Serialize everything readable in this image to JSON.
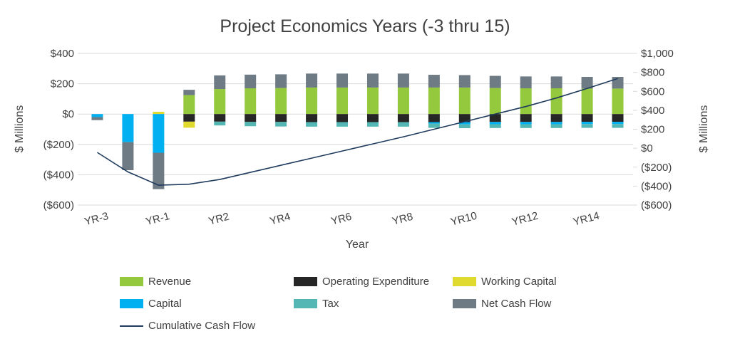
{
  "title": "Project Economics Years (-3 thru 15)",
  "colors": {
    "revenue": "#94c83d",
    "opex": "#262626",
    "working_capital": "#e0d92e",
    "capital": "#00b0f0",
    "tax": "#54b7b3",
    "net_cash_flow": "#6f7b84",
    "line": "#1f3b5e",
    "grid": "#d9d9d9",
    "text": "#404040"
  },
  "chart_data": {
    "type": "bar",
    "subtype": "stacked-bar-with-line-combo",
    "title": "Project Economics Years (-3 thru 15)",
    "categories": [
      "YR-3",
      "YR-2",
      "YR-1",
      "YR1",
      "YR2",
      "YR3",
      "YR4",
      "YR5",
      "YR6",
      "YR7",
      "YR8",
      "YR9",
      "YR10",
      "YR11",
      "YR12",
      "YR13",
      "YR14",
      "YR15"
    ],
    "series": [
      {
        "name": "Revenue",
        "color_key": "revenue",
        "values": [
          0,
          0,
          0,
          125,
          165,
          170,
          172,
          175,
          175,
          175,
          175,
          175,
          175,
          172,
          170,
          170,
          168,
          168
        ]
      },
      {
        "name": "Operating Expenditure",
        "color_key": "opex",
        "values": [
          0,
          0,
          0,
          -50,
          -50,
          -52,
          -52,
          -53,
          -53,
          -53,
          -53,
          -53,
          -53,
          -52,
          -52,
          -52,
          -51,
          -51
        ]
      },
      {
        "name": "Working Capital",
        "color_key": "working_capital",
        "values": [
          0,
          0,
          15,
          -40,
          0,
          0,
          0,
          0,
          0,
          0,
          0,
          0,
          0,
          0,
          0,
          0,
          0,
          0
        ]
      },
      {
        "name": "Capital",
        "color_key": "capital",
        "values": [
          -20,
          -185,
          -255,
          0,
          0,
          0,
          0,
          0,
          0,
          0,
          0,
          -10,
          -15,
          -15,
          -15,
          -15,
          -15,
          -15
        ]
      },
      {
        "name": "Tax",
        "color_key": "tax",
        "values": [
          0,
          0,
          0,
          0,
          -25,
          -28,
          -30,
          -30,
          -30,
          -30,
          -30,
          -28,
          -25,
          -25,
          -25,
          -25,
          -25,
          -25
        ]
      },
      {
        "name": "Net Cash Flow",
        "color_key": "net_cash_flow",
        "values": [
          -20,
          -185,
          -240,
          35,
          90,
          90,
          90,
          92,
          92,
          92,
          92,
          84,
          82,
          80,
          78,
          78,
          77,
          77
        ]
      }
    ],
    "line_series": {
      "name": "Cumulative Cash Flow",
      "color_key": "line",
      "axis": "right",
      "values": [
        -45,
        -250,
        -390,
        -380,
        -330,
        -255,
        -180,
        -105,
        -30,
        45,
        120,
        200,
        280,
        360,
        440,
        530,
        630,
        735
      ]
    },
    "left_axis": {
      "title": "$ Millions",
      "ticks": [
        "$400",
        "$200",
        "$0",
        "($200)",
        "($400)",
        "($600)"
      ],
      "tick_values": [
        400,
        200,
        0,
        -200,
        -400,
        -600
      ],
      "range": [
        -600,
        400
      ]
    },
    "right_axis": {
      "title": "$ Millions",
      "ticks": [
        "$1,000",
        "$800",
        "$600",
        "$400",
        "$200",
        "$0",
        "($200)",
        "($400)",
        "($600)"
      ],
      "tick_values": [
        1000,
        800,
        600,
        400,
        200,
        0,
        -200,
        -400,
        -600
      ],
      "range": [
        -600,
        1000
      ]
    },
    "x_axis": {
      "title": "Year",
      "shown_labels": [
        "YR-3",
        "YR-1",
        "YR2",
        "YR4",
        "YR6",
        "YR8",
        "YR10",
        "YR12",
        "YR14"
      ]
    },
    "grid": "horizontal",
    "legend_position": "bottom"
  },
  "legend_rows": [
    [
      {
        "label": "Revenue",
        "swatch": "rect",
        "color_key": "revenue"
      },
      {
        "label": "Operating Expenditure",
        "swatch": "rect",
        "color_key": "opex"
      },
      {
        "label": "Working Capital",
        "swatch": "rect",
        "color_key": "working_capital"
      }
    ],
    [
      {
        "label": "Capital",
        "swatch": "rect",
        "color_key": "capital"
      },
      {
        "label": "Tax",
        "swatch": "rect",
        "color_key": "tax"
      },
      {
        "label": "Net Cash Flow",
        "swatch": "rect",
        "color_key": "net_cash_flow"
      }
    ],
    [
      {
        "label": "Cumulative Cash Flow",
        "swatch": "line",
        "color_key": "line"
      }
    ]
  ]
}
